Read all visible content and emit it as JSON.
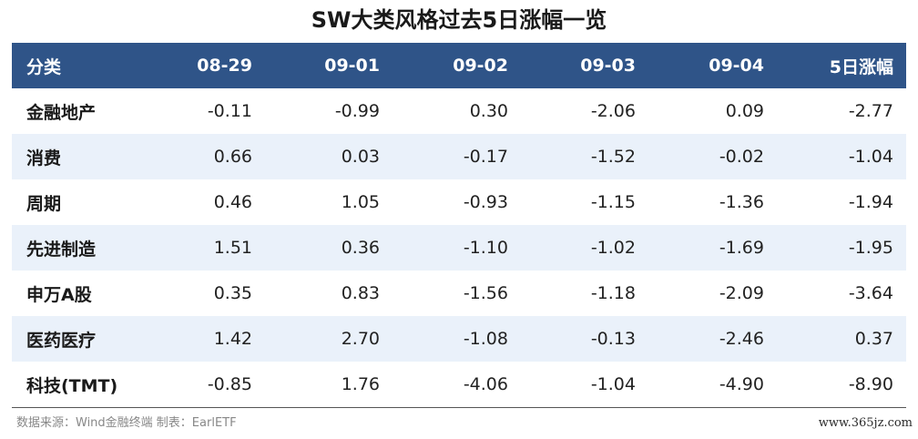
{
  "title": "SW大类风格过去5日涨幅一览",
  "table": {
    "headers": [
      "分类",
      "08-29",
      "09-01",
      "09-02",
      "09-03",
      "09-04",
      "5日涨幅"
    ],
    "rows": [
      [
        "金融地产",
        "-0.11",
        "-0.99",
        "0.30",
        "-2.06",
        "0.09",
        "-2.77"
      ],
      [
        "消费",
        "0.66",
        "0.03",
        "-0.17",
        "-1.52",
        "-0.02",
        "-1.04"
      ],
      [
        "周期",
        "0.46",
        "1.05",
        "-0.93",
        "-1.15",
        "-1.36",
        "-1.94"
      ],
      [
        "先进制造",
        "1.51",
        "0.36",
        "-1.10",
        "-1.02",
        "-1.69",
        "-1.95"
      ],
      [
        "申万A股",
        "0.35",
        "0.83",
        "-1.56",
        "-1.18",
        "-2.09",
        "-3.64"
      ],
      [
        "医药医疗",
        "1.42",
        "2.70",
        "-1.08",
        "-0.13",
        "-2.46",
        "0.37"
      ],
      [
        "科技(TMT)",
        "-0.85",
        "1.76",
        "-4.06",
        "-1.04",
        "-4.90",
        "-8.90"
      ]
    ]
  },
  "source": "数据来源：Wind金融终端 制表：EarlETF",
  "watermark": "www.365jz.com",
  "colors": {
    "header_bg": "#2f5488",
    "row_alt_bg": "#eaf1fa"
  }
}
